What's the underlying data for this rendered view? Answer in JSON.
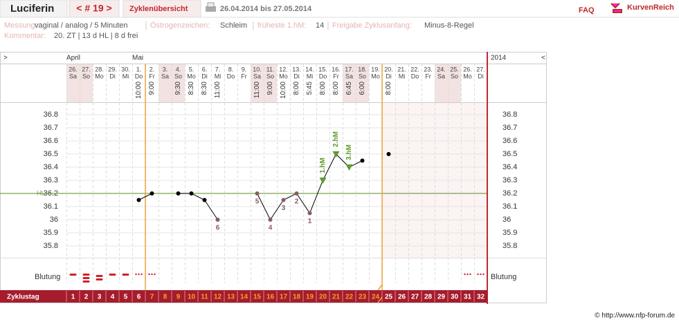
{
  "header": {
    "user": "Luciferin",
    "cycle": "< # 19 >",
    "overview": "Zyklenübersicht",
    "range": "26.04.2014 bis 27.05.2014",
    "faq": "FAQ",
    "brand": "KurvenReich"
  },
  "info": [
    {
      "label": "Messung:",
      "value": "vaginal / analog / 5 Minuten"
    },
    {
      "label": "Östrogenzeichen:",
      "value": "Schleim"
    },
    {
      "label": "früheste 1.hM:",
      "value": "14"
    },
    {
      "label": "Freigabe Zyklusanfang:",
      "value": "Minus-8-Regel"
    }
  ],
  "comment": {
    "label": "Kommentar:",
    "value": "20. ZT | 13 d HL | 8 d frei"
  },
  "footer": "© http://www.nfp-forum.de",
  "chart_data": {
    "type": "line",
    "nav_left": ">",
    "nav_right": "<",
    "year": "2014",
    "month_labels": [
      "April",
      null,
      null,
      null,
      null,
      "Mai",
      null,
      null,
      null,
      null,
      null,
      null,
      null,
      null,
      null,
      null,
      null,
      null,
      null,
      null,
      null,
      null,
      null,
      null,
      null,
      null,
      null,
      null,
      null,
      null,
      null,
      null
    ],
    "categories": [
      "26.",
      "27.",
      "28.",
      "29.",
      "30.",
      "1.",
      "2.",
      "3.",
      "4.",
      "5.",
      "6.",
      "7.",
      "8.",
      "9.",
      "10.",
      "11.",
      "12.",
      "13.",
      "14.",
      "15.",
      "16.",
      "17.",
      "18.",
      "19.",
      "20.",
      "21.",
      "22.",
      "23.",
      "24.",
      "25.",
      "26.",
      "27."
    ],
    "weekdays": [
      "Sa",
      "So",
      "Mo",
      "Di",
      "Mi",
      "Do",
      "Fr",
      "Sa",
      "So",
      "Mo",
      "Di",
      "Mi",
      "Do",
      "Fr",
      "Sa",
      "So",
      "Mo",
      "Di",
      "Mi",
      "Do",
      "Fr",
      "Sa",
      "So",
      "Mo",
      "Di",
      "Mi",
      "Do",
      "Fr",
      "Sa",
      "So",
      "Mo",
      "Di"
    ],
    "times": [
      null,
      null,
      null,
      null,
      null,
      "10:00",
      "9:00",
      null,
      "9:30",
      "8:30",
      "8:30",
      "11:00",
      null,
      null,
      "11:00",
      "9:00",
      "10:00",
      "8:00",
      "5:45",
      "8:00",
      "8:00",
      "6:45",
      "6:00",
      null,
      "8:00",
      null,
      null,
      null,
      null,
      null,
      null,
      null
    ],
    "series": [
      {
        "name": "Temperatur",
        "color": "#000000",
        "values": [
          null,
          null,
          null,
          null,
          null,
          36.15,
          36.2,
          null,
          36.2,
          36.2,
          36.15,
          36.0,
          null,
          null,
          36.2,
          36.0,
          36.15,
          36.2,
          36.05,
          36.3,
          36.5,
          36.4,
          36.45,
          null,
          36.5,
          null,
          null,
          null,
          null,
          null,
          null,
          null
        ]
      }
    ],
    "point_labels": [
      null,
      null,
      null,
      null,
      null,
      null,
      null,
      null,
      null,
      null,
      null,
      "6",
      null,
      null,
      "5",
      "4",
      "3",
      "2",
      "1",
      "1.hM",
      "2.hM",
      "3.hM",
      null,
      null,
      null,
      null,
      null,
      null,
      null,
      null,
      null,
      null
    ],
    "coverline": 36.2,
    "coverline_label": "HL",
    "ylim": [
      35.7,
      36.9
    ],
    "yticks": [
      35.8,
      35.9,
      36,
      36.1,
      36.2,
      36.3,
      36.4,
      36.5,
      36.6,
      36.7,
      36.8
    ],
    "grid": true,
    "bleeding_label": "Blutung",
    "cycle_day_label": "Zyklustag",
    "cycle_days": [
      1,
      2,
      3,
      4,
      5,
      6,
      7,
      8,
      9,
      10,
      11,
      12,
      13,
      14,
      15,
      16,
      17,
      18,
      19,
      20,
      21,
      22,
      23,
      24,
      25,
      26,
      27,
      28,
      29,
      30,
      31,
      32
    ]
  }
}
